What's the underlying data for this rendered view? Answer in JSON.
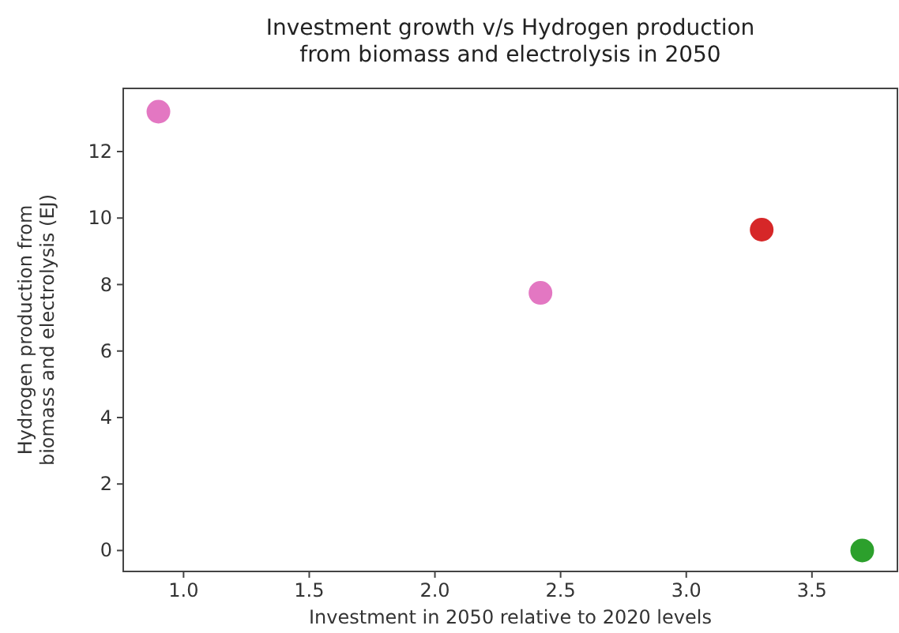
{
  "chart_data": {
    "type": "scatter",
    "title": "Investment growth v/s Hydrogen production\nfrom biomass and electrolysis in 2050",
    "xlabel": "Investment in 2050 relative to 2020 levels",
    "ylabel": "Hydrogen production from\nbiomass and electrolysis (EJ)",
    "x": [
      0.9,
      2.42,
      3.3,
      3.7
    ],
    "values": [
      13.2,
      7.75,
      9.65,
      0
    ],
    "colors": [
      "#e377c2",
      "#e377c2",
      "#d62728",
      "#2ca02c"
    ],
    "xlim": [
      0.76,
      3.84
    ],
    "xticks": [
      {
        "value": 1,
        "label": "1.0"
      },
      1.5,
      {
        "value": 2,
        "label": "2.0"
      },
      2.5,
      {
        "value": 3,
        "label": "3.0"
      },
      3.5
    ],
    "ylim": [
      -0.63,
      13.9
    ],
    "yticks": [
      0,
      2,
      4,
      6,
      8,
      10,
      12
    ],
    "grid": false,
    "marker": "circle"
  }
}
